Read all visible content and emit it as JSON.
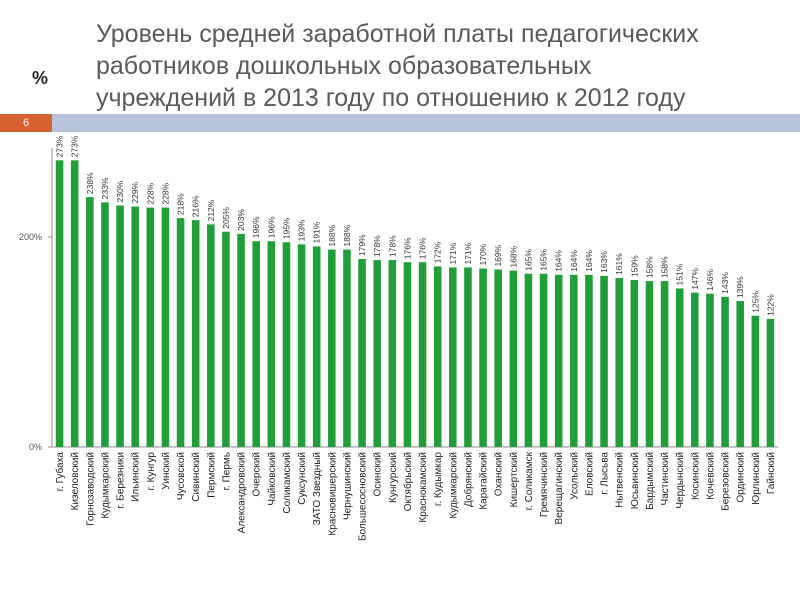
{
  "slide": {
    "number": "6",
    "title": "Уровень средней заработной платы педагогических работников дошкольных образовательных учреждений в 2013 году по отношению к 2012 году",
    "unit": "%"
  },
  "colors": {
    "bar": "#1f9e3a",
    "stripe_left": "#d8602e",
    "stripe_right": "#b7c3da"
  },
  "chart_data": {
    "type": "bar",
    "title": "",
    "xlabel": "",
    "ylabel": "",
    "ylim": [
      0,
      280
    ],
    "yticks": [
      0,
      200
    ],
    "ytick_labels": [
      "0%",
      "200%"
    ],
    "grid": false,
    "categories": [
      "г. Губаха",
      "Кизеловский",
      "Горнозаводский",
      "Кудымкарский",
      "г. Березники",
      "Ильинский",
      "г. Кунгур",
      "Уинский",
      "Чусовской",
      "Сивинский",
      "Пермский",
      "г. Пермь",
      "Александровский",
      "Очерский",
      "Чайковский",
      "Соликамский",
      "Суксунский",
      "ЗАТО Звездный",
      "Красновишерский",
      "Чернушинский",
      "Большесосновский",
      "Осинский",
      "Кунгурский",
      "Октябрьский",
      "Краснокамский",
      "г. Кудымкар",
      "Кудымкарский",
      "Добрянский",
      "Карагайский",
      "Оханский",
      "Кишертский",
      "г. Соликамск",
      "Гремячинский",
      "Верещагинский",
      "Усольский",
      "Еловский",
      "г. Лысьва",
      "Нытвенский",
      "Юсьвинский",
      "Бардымский",
      "Частинский",
      "Чердынский",
      "Косинский",
      "Кочевский",
      "Березовский",
      "Ординский",
      "Юрлинский",
      "Гайнский"
    ],
    "values": [
      273,
      273,
      238,
      233,
      230,
      229,
      228,
      228,
      218,
      216,
      212,
      205,
      203,
      196,
      196,
      195,
      193,
      191,
      188,
      188,
      179,
      178,
      178,
      176,
      176,
      172,
      171,
      171,
      170,
      169,
      168,
      165,
      165,
      164,
      164,
      164,
      163,
      161,
      159,
      158,
      158,
      151,
      147,
      146,
      143,
      139,
      125,
      122
    ],
    "value_labels": [
      "273%",
      "273%",
      "238%",
      "233%",
      "230%",
      "229%",
      "228%",
      "228%",
      "218%",
      "216%",
      "212%",
      "205%",
      "203%",
      "196%",
      "196%",
      "195%",
      "193%",
      "191%",
      "188%",
      "188%",
      "179%",
      "178%",
      "178%",
      "176%",
      "176%",
      "172%",
      "171%",
      "171%",
      "170%",
      "169%",
      "168%",
      "165%",
      "165%",
      "164%",
      "164%",
      "164%",
      "163%",
      "161%",
      "159%",
      "158%",
      "158%",
      "151%",
      "147%",
      "146%",
      "143%",
      "139%",
      "125%",
      "122%"
    ]
  }
}
